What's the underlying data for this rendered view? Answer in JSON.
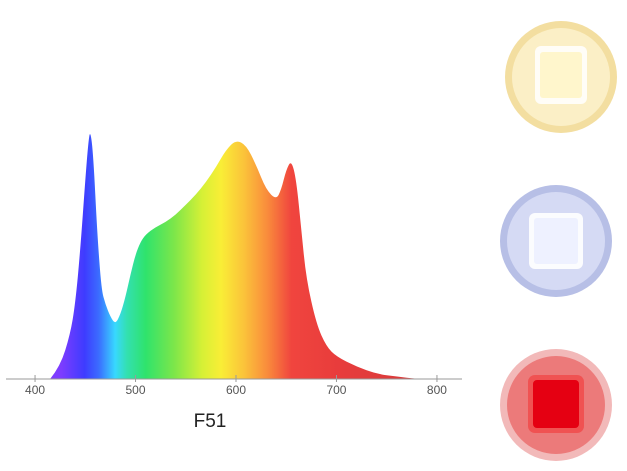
{
  "chart_data": {
    "type": "area",
    "title": "",
    "caption": "F51",
    "xlabel": "",
    "ylabel": "",
    "xlim": [
      390,
      810
    ],
    "ylim": [
      0,
      1
    ],
    "grid": false,
    "xticks": [
      400,
      500,
      600,
      700,
      800
    ],
    "x": [
      415,
      425,
      435,
      440,
      445,
      450,
      453,
      455,
      458,
      462,
      466,
      470,
      475,
      480,
      485,
      490,
      495,
      500,
      505,
      510,
      520,
      530,
      540,
      550,
      560,
      570,
      580,
      590,
      600,
      610,
      620,
      630,
      640,
      645,
      650,
      655,
      660,
      665,
      670,
      680,
      690,
      700,
      720,
      740,
      760,
      780,
      795
    ],
    "series": [
      {
        "values": [
          0.0,
          0.05,
          0.18,
          0.3,
          0.52,
          0.8,
          0.95,
          1.0,
          0.9,
          0.58,
          0.36,
          0.3,
          0.25,
          0.22,
          0.26,
          0.33,
          0.42,
          0.5,
          0.55,
          0.58,
          0.61,
          0.63,
          0.66,
          0.7,
          0.74,
          0.79,
          0.85,
          0.92,
          0.96,
          0.94,
          0.86,
          0.76,
          0.72,
          0.76,
          0.84,
          0.88,
          0.8,
          0.6,
          0.4,
          0.22,
          0.13,
          0.09,
          0.05,
          0.02,
          0.01,
          0.0,
          0.0
        ]
      }
    ]
  },
  "leds": [
    {
      "name": "warm-white",
      "ring": "#f3dea0",
      "glow": "#fbefc6",
      "core": "#fff6cc"
    },
    {
      "name": "cool-white",
      "ring": "#b7bfe6",
      "glow": "#d5daf4",
      "core": "#eef1ff"
    },
    {
      "name": "red",
      "ring": "#e86a6a",
      "glow": "#f4a7a7",
      "core": "#e50012"
    }
  ]
}
